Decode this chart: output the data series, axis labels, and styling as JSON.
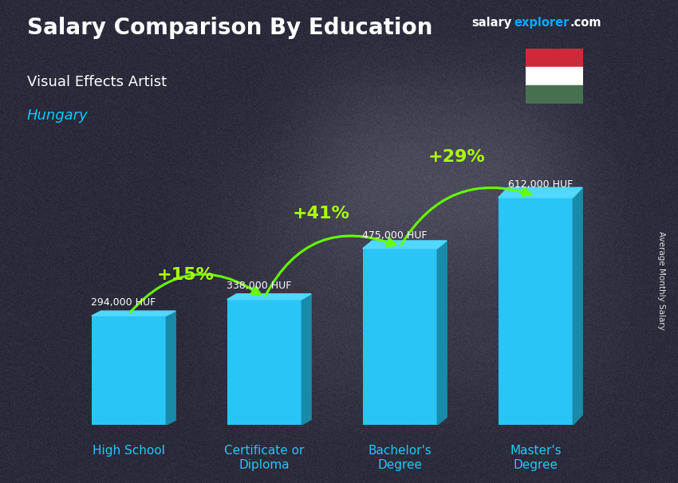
{
  "title": "Salary Comparison By Education",
  "subtitle": "Visual Effects Artist",
  "country": "Hungary",
  "categories": [
    "High School",
    "Certificate or\nDiploma",
    "Bachelor's\nDegree",
    "Master's\nDegree"
  ],
  "values": [
    294000,
    338000,
    475000,
    612000
  ],
  "value_labels": [
    "294,000 HUF",
    "338,000 HUF",
    "475,000 HUF",
    "612,000 HUF"
  ],
  "pct_labels": [
    "+15%",
    "+41%",
    "+29%"
  ],
  "bar_color": "#29c5f6",
  "bar_right_color": "#1a8aaa",
  "bar_top_color": "#50d8ff",
  "bg_color": "#3a3a4a",
  "title_color": "#ffffff",
  "subtitle_color": "#ffffff",
  "country_color": "#00ccff",
  "value_label_color": "#ffffff",
  "pct_color": "#aaff00",
  "ylabel": "Average Monthly Salary",
  "arrow_color": "#66ff00",
  "ylim": [
    0,
    780000
  ],
  "bar_width": 0.55,
  "brand_salary_color": "#ffffff",
  "brand_explorer_color": "#00aaff",
  "brand_com_color": "#ffffff",
  "flag_red": "#ce2939",
  "flag_white": "#ffffff",
  "flag_green": "#477050"
}
